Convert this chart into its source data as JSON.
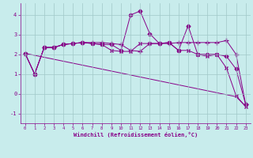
{
  "xlabel": "Windchill (Refroidissement éolien,°C)",
  "background_color": "#c8ecec",
  "grid_color": "#a0c8c8",
  "line_color": "#880088",
  "xlim": [
    -0.5,
    23.5
  ],
  "ylim": [
    -1.5,
    4.6
  ],
  "yticks": [
    -1,
    0,
    1,
    2,
    3,
    4
  ],
  "xticks": [
    0,
    1,
    2,
    3,
    4,
    5,
    6,
    7,
    8,
    9,
    10,
    11,
    12,
    13,
    14,
    15,
    16,
    17,
    18,
    19,
    20,
    21,
    22,
    23
  ],
  "series": [
    {
      "x": [
        0,
        1,
        2,
        3,
        4,
        5,
        6,
        7,
        8,
        9,
        10,
        11,
        12,
        13,
        14,
        15,
        16,
        17,
        18,
        19,
        20,
        21,
        22,
        23
      ],
      "y": [
        2.05,
        1.0,
        2.35,
        2.35,
        2.5,
        2.55,
        2.6,
        2.55,
        2.5,
        2.5,
        2.2,
        4.0,
        4.2,
        3.05,
        2.55,
        2.6,
        2.2,
        3.45,
        2.0,
        2.0,
        2.0,
        1.9,
        1.25,
        -0.55
      ],
      "marker": "D",
      "markersize": 2.5
    },
    {
      "x": [
        0,
        1,
        2,
        3,
        4,
        5,
        6,
        7,
        8,
        9,
        10,
        11,
        12,
        13,
        14,
        15,
        16,
        17,
        18,
        19,
        20,
        21,
        22,
        23
      ],
      "y": [
        2.05,
        1.0,
        2.35,
        2.35,
        2.5,
        2.55,
        2.6,
        2.6,
        2.6,
        2.55,
        2.5,
        2.2,
        2.15,
        2.55,
        2.55,
        2.55,
        2.6,
        2.6,
        2.6,
        2.6,
        2.6,
        2.7,
        2.0,
        -0.55
      ],
      "marker": "+",
      "markersize": 4
    },
    {
      "x": [
        0,
        1,
        2,
        3,
        4,
        5,
        6,
        7,
        8,
        9,
        10,
        11,
        12,
        13,
        14,
        15,
        16,
        17,
        18,
        19,
        20,
        21,
        22,
        23
      ],
      "y": [
        2.05,
        1.0,
        2.35,
        2.35,
        2.5,
        2.55,
        2.6,
        2.55,
        2.5,
        2.2,
        2.15,
        2.15,
        2.55,
        2.55,
        2.55,
        2.6,
        2.2,
        2.2,
        2.0,
        1.9,
        2.0,
        1.3,
        -0.1,
        -0.65
      ],
      "marker": "x",
      "markersize": 3
    },
    {
      "x": [
        0,
        1,
        2,
        3,
        4,
        5,
        6,
        7,
        8,
        9,
        10,
        11,
        12,
        13,
        14,
        15,
        16,
        17,
        18,
        19,
        20,
        21,
        22,
        23
      ],
      "y": [
        2.05,
        1.95,
        1.85,
        1.75,
        1.65,
        1.55,
        1.45,
        1.35,
        1.25,
        1.15,
        1.05,
        0.95,
        0.85,
        0.75,
        0.65,
        0.55,
        0.45,
        0.35,
        0.25,
        0.15,
        0.05,
        -0.05,
        -0.15,
        -0.65
      ],
      "marker": null,
      "markersize": 0
    }
  ]
}
